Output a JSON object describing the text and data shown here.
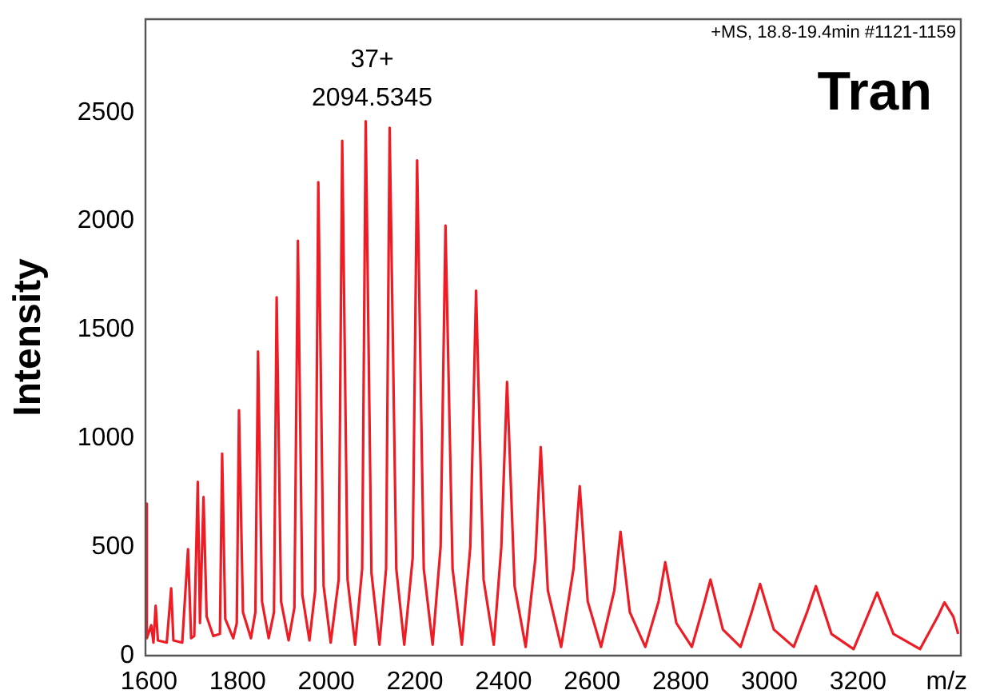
{
  "chart_data": {
    "type": "line",
    "title": "Tran",
    "ylabel": "Intensity",
    "annotations": [
      "+MS, 18.8-19.4min #1121-1159",
      {
        "text": "37+\n2094.5345",
        "x": 2089,
        "y": 2460
      }
    ],
    "xlim": [
      1592,
      3432
    ],
    "ylim": [
      0,
      2930
    ],
    "xticks": [
      1600,
      1800,
      2000,
      2200,
      2400,
      2600,
      2800,
      3000,
      3200,
      {
        "value": 3400,
        "label": "m/z"
      }
    ],
    "yticks": [
      0,
      500,
      1000,
      1500,
      2000,
      2500
    ],
    "grid": false,
    "legend": false,
    "series": [
      {
        "color": "#ee1c25",
        "x": [
          1592,
          1595,
          1605,
          1610,
          1615,
          1620,
          1640,
          1650,
          1655,
          1675,
          1688,
          1695,
          1702,
          1710,
          1715,
          1723,
          1730,
          1745,
          1760,
          1765,
          1772,
          1790,
          1798,
          1803,
          1812,
          1830,
          1840,
          1846,
          1855,
          1870,
          1882,
          1888,
          1898,
          1915,
          1928,
          1936,
          1946,
          1962,
          1975,
          1982,
          1994,
          2010,
          2028,
          2036,
          2048,
          2065,
          2081,
          2089,
          2102,
          2120,
          2135,
          2143,
          2158,
          2176,
          2195,
          2205,
          2220,
          2240,
          2258,
          2269,
          2285,
          2306,
          2325,
          2338,
          2355,
          2378,
          2395,
          2408,
          2425,
          2450,
          2472,
          2484,
          2500,
          2530,
          2558,
          2572,
          2590,
          2620,
          2650,
          2664,
          2685,
          2720,
          2750,
          2765,
          2790,
          2825,
          2850,
          2867,
          2895,
          2935,
          2960,
          2979,
          3010,
          3055,
          3085,
          3105,
          3140,
          3190,
          3225,
          3243,
          3280,
          3340,
          3380,
          3395,
          3415,
          3426
        ],
        "values": [
          700,
          80,
          140,
          60,
          230,
          70,
          60,
          310,
          70,
          60,
          490,
          80,
          90,
          800,
          150,
          730,
          180,
          90,
          100,
          930,
          170,
          80,
          150,
          1130,
          200,
          80,
          200,
          1400,
          250,
          80,
          200,
          1650,
          250,
          70,
          220,
          1910,
          280,
          70,
          300,
          2180,
          320,
          60,
          350,
          2370,
          350,
          50,
          400,
          2460,
          380,
          50,
          400,
          2430,
          400,
          50,
          450,
          2280,
          400,
          50,
          500,
          1980,
          400,
          50,
          500,
          1680,
          350,
          50,
          500,
          1260,
          320,
          40,
          450,
          960,
          300,
          40,
          400,
          780,
          250,
          40,
          300,
          570,
          200,
          40,
          250,
          430,
          150,
          40,
          220,
          350,
          120,
          40,
          200,
          330,
          120,
          40,
          200,
          320,
          100,
          30,
          200,
          290,
          100,
          30,
          180,
          245,
          180,
          100
        ]
      }
    ]
  }
}
